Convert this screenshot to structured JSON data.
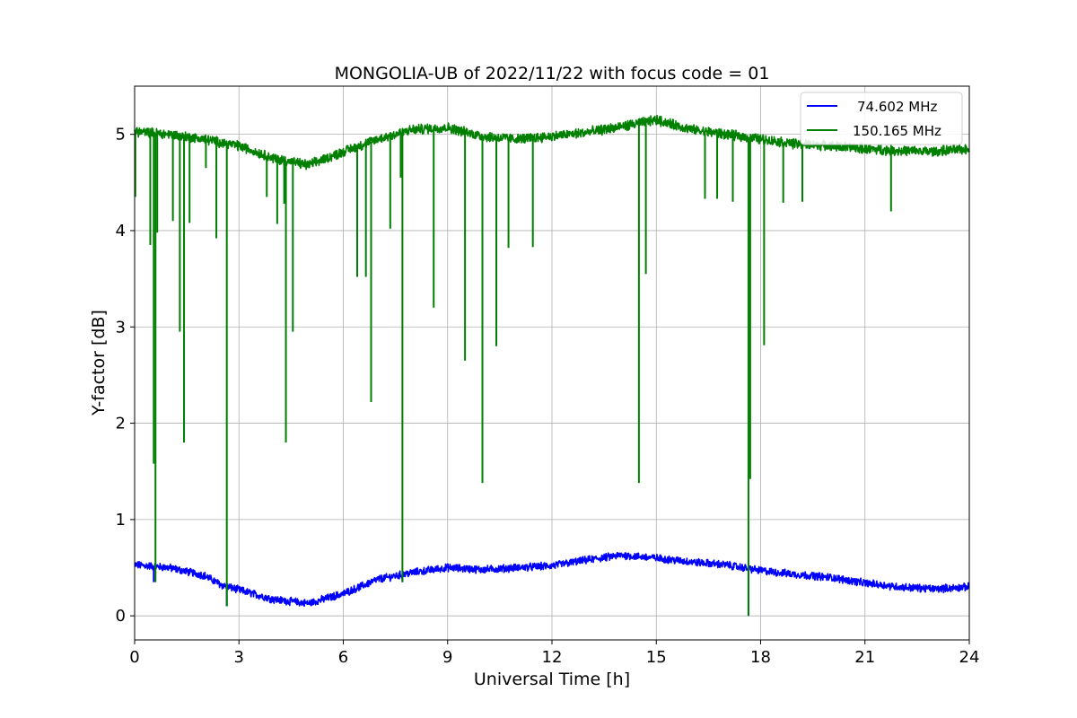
{
  "chart_data": {
    "type": "line",
    "title": "MONGOLIA-UB of 2022/11/22 with focus code = 01",
    "xlabel": "Universal Time [h]",
    "ylabel": "Y-factor [dB]",
    "xlim": [
      0,
      24
    ],
    "ylim": [
      -0.25,
      5.5
    ],
    "xticks": [
      0,
      3,
      6,
      9,
      12,
      15,
      18,
      21,
      24
    ],
    "yticks": [
      0,
      1,
      2,
      3,
      4,
      5
    ],
    "grid": true,
    "legend_position": "top-right",
    "series": [
      {
        "name": "74.602 MHz",
        "color": "#0000ff",
        "baseline": [
          [
            0,
            0.53
          ],
          [
            1,
            0.5
          ],
          [
            2,
            0.42
          ],
          [
            2.5,
            0.32
          ],
          [
            3,
            0.27
          ],
          [
            4,
            0.17
          ],
          [
            5,
            0.13
          ],
          [
            6,
            0.23
          ],
          [
            7,
            0.38
          ],
          [
            8,
            0.45
          ],
          [
            9,
            0.5
          ],
          [
            10,
            0.48
          ],
          [
            11,
            0.5
          ],
          [
            12,
            0.52
          ],
          [
            13,
            0.58
          ],
          [
            14,
            0.63
          ],
          [
            15,
            0.6
          ],
          [
            16,
            0.56
          ],
          [
            17,
            0.53
          ],
          [
            18,
            0.47
          ],
          [
            19,
            0.43
          ],
          [
            20,
            0.4
          ],
          [
            21,
            0.34
          ],
          [
            22,
            0.3
          ],
          [
            23,
            0.28
          ],
          [
            24,
            0.3
          ]
        ],
        "noise_amplitude": 0.035,
        "dips": [
          [
            0.55,
            0.35
          ],
          [
            2.65,
            0.1
          ],
          [
            7.7,
            0.35
          ],
          [
            17.65,
            0.0
          ]
        ]
      },
      {
        "name": "150.165 MHz",
        "color": "#008000",
        "baseline": [
          [
            0,
            5.03
          ],
          [
            1,
            5.0
          ],
          [
            2,
            4.95
          ],
          [
            3,
            4.88
          ],
          [
            4,
            4.75
          ],
          [
            5,
            4.68
          ],
          [
            6,
            4.82
          ],
          [
            7,
            4.95
          ],
          [
            8,
            5.05
          ],
          [
            9,
            5.07
          ],
          [
            10,
            4.98
          ],
          [
            11,
            4.95
          ],
          [
            12,
            4.98
          ],
          [
            13,
            5.02
          ],
          [
            14,
            5.08
          ],
          [
            15,
            5.15
          ],
          [
            16,
            5.05
          ],
          [
            17,
            5.0
          ],
          [
            18,
            4.95
          ],
          [
            19,
            4.9
          ],
          [
            20,
            4.88
          ],
          [
            21,
            4.85
          ],
          [
            22,
            4.83
          ],
          [
            23,
            4.82
          ],
          [
            24,
            4.85
          ]
        ],
        "noise_amplitude": 0.045,
        "dips": [
          [
            0.02,
            4.35
          ],
          [
            0.45,
            3.85
          ],
          [
            0.55,
            1.58
          ],
          [
            0.6,
            0.35
          ],
          [
            0.65,
            3.98
          ],
          [
            1.1,
            4.1
          ],
          [
            1.3,
            2.95
          ],
          [
            1.42,
            1.8
          ],
          [
            1.58,
            4.08
          ],
          [
            2.05,
            4.65
          ],
          [
            2.35,
            3.92
          ],
          [
            2.65,
            0.1
          ],
          [
            3.8,
            4.35
          ],
          [
            4.1,
            4.07
          ],
          [
            4.3,
            4.28
          ],
          [
            4.35,
            1.8
          ],
          [
            4.55,
            2.95
          ],
          [
            6.4,
            3.52
          ],
          [
            6.65,
            3.52
          ],
          [
            6.8,
            2.22
          ],
          [
            7.35,
            4.02
          ],
          [
            7.65,
            4.55
          ],
          [
            7.7,
            0.35
          ],
          [
            8.6,
            3.2
          ],
          [
            9.5,
            2.65
          ],
          [
            10.0,
            1.38
          ],
          [
            10.4,
            2.8
          ],
          [
            10.75,
            3.82
          ],
          [
            11.45,
            3.83
          ],
          [
            14.5,
            1.38
          ],
          [
            14.7,
            3.55
          ],
          [
            16.4,
            4.33
          ],
          [
            16.75,
            4.33
          ],
          [
            17.2,
            4.3
          ],
          [
            17.65,
            0.0
          ],
          [
            17.7,
            1.42
          ],
          [
            18.1,
            2.81
          ],
          [
            18.65,
            4.29
          ],
          [
            19.2,
            4.3
          ],
          [
            21.75,
            4.2
          ]
        ]
      }
    ]
  }
}
